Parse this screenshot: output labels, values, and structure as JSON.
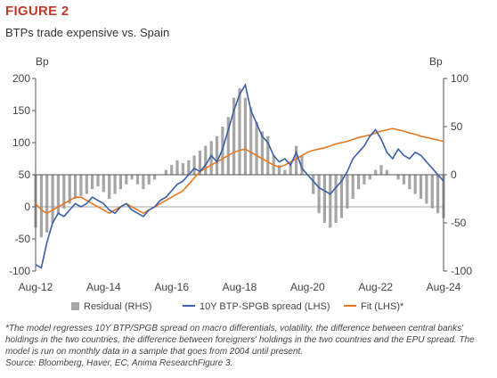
{
  "figure": {
    "label": "FIGURE 2",
    "title": "BTPs trade expensive vs. Spain",
    "note": "*The model regresses 10Y BTP/SPGB spread on macro differentials, volatility, the difference between central banks' holdings in the two countries, the difference between foreigners' holdings in the two countries and the EPU spread. The model is run on monthly data in a sample that goes from 2004 until present.",
    "source": "Source: Bloomberg, Haver, EC, Anima ResearchFigure 3."
  },
  "chart_data": {
    "type": "line",
    "title": "BTPs trade expensive vs. Spain",
    "left_axis": {
      "unit": "Bp",
      "ylim": [
        -100,
        200
      ],
      "ticks": [
        200,
        150,
        100,
        50,
        0,
        -50,
        -100
      ]
    },
    "right_axis": {
      "unit": "Bp",
      "ylim": [
        -100,
        100
      ],
      "ticks": [
        100,
        50,
        0,
        -50,
        -100
      ]
    },
    "x_tick_labels": [
      "Aug-12",
      "Aug-14",
      "Aug-16",
      "Aug-18",
      "Aug-20",
      "Aug-22",
      "Aug-24"
    ],
    "x_range": [
      "Aug-12",
      "Aug-24"
    ],
    "grid": false,
    "legend_position": "bottom",
    "series": [
      {
        "name": "Residual (RHS)",
        "kind": "bar",
        "axis": "right",
        "color": "#a6a6a6",
        "points": [
          [
            "Aug-12",
            -55
          ],
          [
            "Oct-12",
            -65
          ],
          [
            "Dec-12",
            -60
          ],
          [
            "Feb-13",
            -50
          ],
          [
            "Apr-13",
            -40
          ],
          [
            "Jun-13",
            -35
          ],
          [
            "Aug-13",
            -30
          ],
          [
            "Oct-13",
            -25
          ],
          [
            "Dec-13",
            -22
          ],
          [
            "Feb-14",
            -20
          ],
          [
            "Apr-14",
            -15
          ],
          [
            "Jun-14",
            -12
          ],
          [
            "Aug-14",
            -18
          ],
          [
            "Oct-14",
            -25
          ],
          [
            "Dec-14",
            -20
          ],
          [
            "Feb-15",
            -15
          ],
          [
            "Apr-15",
            -10
          ],
          [
            "Jun-15",
            -5
          ],
          [
            "Aug-15",
            -10
          ],
          [
            "Oct-15",
            -15
          ],
          [
            "Dec-15",
            -10
          ],
          [
            "Feb-16",
            -5
          ],
          [
            "Apr-16",
            0
          ],
          [
            "Jun-16",
            5
          ],
          [
            "Aug-16",
            10
          ],
          [
            "Oct-16",
            15
          ],
          [
            "Dec-16",
            12
          ],
          [
            "Feb-17",
            15
          ],
          [
            "Apr-17",
            20
          ],
          [
            "Jun-17",
            25
          ],
          [
            "Aug-17",
            30
          ],
          [
            "Oct-17",
            35
          ],
          [
            "Dec-17",
            40
          ],
          [
            "Feb-18",
            50
          ],
          [
            "Apr-18",
            60
          ],
          [
            "Jun-18",
            80
          ],
          [
            "Aug-18",
            90
          ],
          [
            "Oct-18",
            80
          ],
          [
            "Dec-18",
            70
          ],
          [
            "Feb-19",
            55
          ],
          [
            "Apr-19",
            45
          ],
          [
            "Jun-19",
            40
          ],
          [
            "Aug-19",
            20
          ],
          [
            "Oct-19",
            10
          ],
          [
            "Dec-19",
            5
          ],
          [
            "Feb-20",
            10
          ],
          [
            "Apr-20",
            30
          ],
          [
            "Jun-20",
            20
          ],
          [
            "Aug-20",
            0
          ],
          [
            "Oct-20",
            -20
          ],
          [
            "Dec-20",
            -40
          ],
          [
            "Feb-21",
            -50
          ],
          [
            "Apr-21",
            -55
          ],
          [
            "Jun-21",
            -50
          ],
          [
            "Aug-21",
            -45
          ],
          [
            "Oct-21",
            -35
          ],
          [
            "Dec-21",
            -25
          ],
          [
            "Feb-22",
            -15
          ],
          [
            "Apr-22",
            -10
          ],
          [
            "Jun-22",
            -5
          ],
          [
            "Aug-22",
            5
          ],
          [
            "Oct-22",
            10
          ],
          [
            "Dec-22",
            5
          ],
          [
            "Feb-23",
            0
          ],
          [
            "Apr-23",
            -5
          ],
          [
            "Jun-23",
            -10
          ],
          [
            "Aug-23",
            -15
          ],
          [
            "Oct-23",
            -20
          ],
          [
            "Dec-23",
            -25
          ],
          [
            "Feb-24",
            -30
          ],
          [
            "Apr-24",
            -35
          ],
          [
            "Jun-24",
            -40
          ],
          [
            "Aug-24",
            -45
          ]
        ]
      },
      {
        "name": "10Y BTP-SPGB spread (LHS)",
        "kind": "line",
        "axis": "left",
        "color": "#3a5ea8",
        "points": [
          [
            "Aug-12",
            -90
          ],
          [
            "Oct-12",
            -95
          ],
          [
            "Dec-12",
            -55
          ],
          [
            "Feb-13",
            -25
          ],
          [
            "Apr-13",
            -10
          ],
          [
            "Jun-13",
            -15
          ],
          [
            "Aug-13",
            -5
          ],
          [
            "Oct-13",
            5
          ],
          [
            "Dec-13",
            0
          ],
          [
            "Feb-14",
            5
          ],
          [
            "Apr-14",
            15
          ],
          [
            "Jun-14",
            10
          ],
          [
            "Aug-14",
            5
          ],
          [
            "Oct-14",
            -5
          ],
          [
            "Dec-14",
            -10
          ],
          [
            "Feb-15",
            0
          ],
          [
            "Apr-15",
            5
          ],
          [
            "Jun-15",
            -5
          ],
          [
            "Aug-15",
            -10
          ],
          [
            "Oct-15",
            -15
          ],
          [
            "Dec-15",
            -5
          ],
          [
            "Feb-16",
            0
          ],
          [
            "Apr-16",
            10
          ],
          [
            "Jun-16",
            15
          ],
          [
            "Aug-16",
            25
          ],
          [
            "Oct-16",
            35
          ],
          [
            "Dec-16",
            40
          ],
          [
            "Feb-17",
            50
          ],
          [
            "Apr-17",
            60
          ],
          [
            "Jun-17",
            55
          ],
          [
            "Aug-17",
            65
          ],
          [
            "Oct-17",
            80
          ],
          [
            "Dec-17",
            70
          ],
          [
            "Feb-18",
            90
          ],
          [
            "Apr-18",
            120
          ],
          [
            "Jun-18",
            150
          ],
          [
            "Aug-18",
            175
          ],
          [
            "Oct-18",
            190
          ],
          [
            "Dec-18",
            150
          ],
          [
            "Feb-19",
            130
          ],
          [
            "Apr-19",
            110
          ],
          [
            "Jun-19",
            100
          ],
          [
            "Aug-19",
            80
          ],
          [
            "Oct-19",
            70
          ],
          [
            "Dec-19",
            75
          ],
          [
            "Feb-20",
            65
          ],
          [
            "Apr-20",
            85
          ],
          [
            "Jun-20",
            60
          ],
          [
            "Aug-20",
            50
          ],
          [
            "Oct-20",
            40
          ],
          [
            "Dec-20",
            30
          ],
          [
            "Feb-21",
            25
          ],
          [
            "Apr-21",
            20
          ],
          [
            "Jun-21",
            30
          ],
          [
            "Aug-21",
            40
          ],
          [
            "Oct-21",
            55
          ],
          [
            "Dec-21",
            75
          ],
          [
            "Feb-22",
            85
          ],
          [
            "Apr-22",
            95
          ],
          [
            "Jun-22",
            110
          ],
          [
            "Aug-22",
            120
          ],
          [
            "Oct-22",
            105
          ],
          [
            "Dec-22",
            85
          ],
          [
            "Feb-23",
            75
          ],
          [
            "Apr-23",
            90
          ],
          [
            "Jun-23",
            80
          ],
          [
            "Aug-23",
            75
          ],
          [
            "Oct-23",
            85
          ],
          [
            "Dec-23",
            80
          ],
          [
            "Feb-24",
            70
          ],
          [
            "Apr-24",
            60
          ],
          [
            "Jun-24",
            50
          ],
          [
            "Aug-24",
            40
          ]
        ]
      },
      {
        "name": "Fit (LHS)*",
        "kind": "line",
        "axis": "left",
        "color": "#e87722",
        "points": [
          [
            "Aug-12",
            5
          ],
          [
            "Oct-12",
            -5
          ],
          [
            "Dec-12",
            -10
          ],
          [
            "Feb-13",
            -5
          ],
          [
            "Apr-13",
            0
          ],
          [
            "Jun-13",
            5
          ],
          [
            "Aug-13",
            10
          ],
          [
            "Oct-13",
            15
          ],
          [
            "Dec-13",
            15
          ],
          [
            "Feb-14",
            10
          ],
          [
            "Apr-14",
            5
          ],
          [
            "Jun-14",
            0
          ],
          [
            "Aug-14",
            -5
          ],
          [
            "Oct-14",
            -10
          ],
          [
            "Dec-14",
            -5
          ],
          [
            "Feb-15",
            0
          ],
          [
            "Apr-15",
            5
          ],
          [
            "Jun-15",
            0
          ],
          [
            "Aug-15",
            -5
          ],
          [
            "Oct-15",
            -10
          ],
          [
            "Dec-15",
            -5
          ],
          [
            "Feb-16",
            0
          ],
          [
            "Apr-16",
            5
          ],
          [
            "Jun-16",
            10
          ],
          [
            "Aug-16",
            15
          ],
          [
            "Oct-16",
            20
          ],
          [
            "Dec-16",
            25
          ],
          [
            "Feb-17",
            35
          ],
          [
            "Apr-17",
            45
          ],
          [
            "Jun-17",
            55
          ],
          [
            "Aug-17",
            60
          ],
          [
            "Oct-17",
            65
          ],
          [
            "Dec-17",
            70
          ],
          [
            "Feb-18",
            75
          ],
          [
            "Apr-18",
            80
          ],
          [
            "Jun-18",
            85
          ],
          [
            "Aug-18",
            88
          ],
          [
            "Oct-18",
            90
          ],
          [
            "Dec-18",
            85
          ],
          [
            "Feb-19",
            80
          ],
          [
            "Apr-19",
            75
          ],
          [
            "Jun-19",
            70
          ],
          [
            "Aug-19",
            65
          ],
          [
            "Oct-19",
            62
          ],
          [
            "Dec-19",
            65
          ],
          [
            "Feb-20",
            70
          ],
          [
            "Apr-20",
            75
          ],
          [
            "Jun-20",
            80
          ],
          [
            "Aug-20",
            85
          ],
          [
            "Oct-20",
            88
          ],
          [
            "Dec-20",
            90
          ],
          [
            "Feb-21",
            92
          ],
          [
            "Apr-21",
            95
          ],
          [
            "Jun-21",
            98
          ],
          [
            "Aug-21",
            100
          ],
          [
            "Oct-21",
            102
          ],
          [
            "Dec-21",
            105
          ],
          [
            "Feb-22",
            108
          ],
          [
            "Apr-22",
            110
          ],
          [
            "Jun-22",
            112
          ],
          [
            "Aug-22",
            115
          ],
          [
            "Oct-22",
            118
          ],
          [
            "Dec-22",
            120
          ],
          [
            "Feb-23",
            122
          ],
          [
            "Apr-23",
            120
          ],
          [
            "Jun-23",
            118
          ],
          [
            "Aug-23",
            115
          ],
          [
            "Oct-23",
            113
          ],
          [
            "Dec-23",
            110
          ],
          [
            "Feb-24",
            108
          ],
          [
            "Apr-24",
            106
          ],
          [
            "Jun-24",
            104
          ],
          [
            "Aug-24",
            102
          ]
        ]
      }
    ]
  }
}
